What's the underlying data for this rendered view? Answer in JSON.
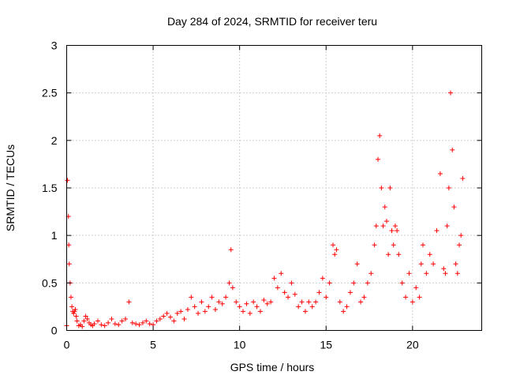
{
  "chart_data": {
    "type": "scatter",
    "title": "Day 284 of 2024, SRMTID for receiver teru",
    "xlabel": "GPS time / hours",
    "ylabel": "SRMTID / TECUs",
    "xlim": [
      0,
      24
    ],
    "ylim": [
      0,
      3
    ],
    "xticks": [
      0,
      5,
      10,
      15,
      20
    ],
    "xtick_labels": [
      "0",
      "5",
      "10",
      "15",
      "20"
    ],
    "yticks": [
      0,
      0.5,
      1,
      1.5,
      2,
      2.5,
      3
    ],
    "ytick_labels": [
      "0",
      "0.5",
      "1",
      "1.5",
      "2",
      "2.5",
      "3"
    ],
    "grid": true,
    "marker": "+",
    "color": "#ff0000",
    "series": [
      {
        "name": "SRMTID",
        "x": [
          0.0,
          0.05,
          0.1,
          0.12,
          0.15,
          0.2,
          0.25,
          0.3,
          0.35,
          0.4,
          0.45,
          0.5,
          0.55,
          0.6,
          0.7,
          0.8,
          0.9,
          1.0,
          1.1,
          1.2,
          1.3,
          1.4,
          1.5,
          1.6,
          1.8,
          2.0,
          2.2,
          2.4,
          2.6,
          2.8,
          3.0,
          3.2,
          3.4,
          3.6,
          3.8,
          4.0,
          4.2,
          4.4,
          4.6,
          4.8,
          5.0,
          5.2,
          5.4,
          5.6,
          5.8,
          6.0,
          6.2,
          6.4,
          6.6,
          6.8,
          7.0,
          7.2,
          7.4,
          7.6,
          7.8,
          8.0,
          8.2,
          8.4,
          8.6,
          8.8,
          9.0,
          9.2,
          9.4,
          9.5,
          9.6,
          9.8,
          10.0,
          10.2,
          10.4,
          10.6,
          10.8,
          11.0,
          11.2,
          11.4,
          11.6,
          11.8,
          12.0,
          12.2,
          12.4,
          12.6,
          12.8,
          13.0,
          13.2,
          13.4,
          13.6,
          13.8,
          14.0,
          14.2,
          14.4,
          14.6,
          14.8,
          15.0,
          15.2,
          15.4,
          15.5,
          15.6,
          15.8,
          16.0,
          16.2,
          16.4,
          16.6,
          16.8,
          17.0,
          17.2,
          17.4,
          17.6,
          17.8,
          17.9,
          18.0,
          18.1,
          18.2,
          18.3,
          18.4,
          18.5,
          18.6,
          18.7,
          18.8,
          18.9,
          19.0,
          19.1,
          19.2,
          19.4,
          19.6,
          19.8,
          20.0,
          20.2,
          20.4,
          20.5,
          20.6,
          20.8,
          21.0,
          21.2,
          21.4,
          21.6,
          21.8,
          21.9,
          22.0,
          22.1,
          22.2,
          22.3,
          22.4,
          22.5,
          22.6,
          22.7,
          22.8,
          22.9
        ],
        "y": [
          0.05,
          1.58,
          1.2,
          0.9,
          0.7,
          0.5,
          0.35,
          0.25,
          0.2,
          0.18,
          0.2,
          0.22,
          0.15,
          0.1,
          0.05,
          0.06,
          0.04,
          0.1,
          0.15,
          0.12,
          0.08,
          0.06,
          0.05,
          0.07,
          0.1,
          0.06,
          0.05,
          0.08,
          0.12,
          0.07,
          0.06,
          0.1,
          0.12,
          0.3,
          0.08,
          0.07,
          0.06,
          0.08,
          0.1,
          0.07,
          0.06,
          0.1,
          0.12,
          0.15,
          0.18,
          0.14,
          0.1,
          0.18,
          0.2,
          0.12,
          0.22,
          0.35,
          0.25,
          0.18,
          0.3,
          0.2,
          0.25,
          0.35,
          0.22,
          0.3,
          0.28,
          0.35,
          0.5,
          0.85,
          0.45,
          0.3,
          0.25,
          0.2,
          0.28,
          0.18,
          0.3,
          0.25,
          0.2,
          0.32,
          0.28,
          0.3,
          0.55,
          0.45,
          0.6,
          0.4,
          0.35,
          0.5,
          0.38,
          0.25,
          0.3,
          0.2,
          0.3,
          0.25,
          0.3,
          0.4,
          0.55,
          0.35,
          0.5,
          0.9,
          0.8,
          0.85,
          0.3,
          0.2,
          0.25,
          0.4,
          0.5,
          0.7,
          0.3,
          0.35,
          0.5,
          0.6,
          0.9,
          1.1,
          1.8,
          2.05,
          1.5,
          1.1,
          1.3,
          1.15,
          0.8,
          1.5,
          1.05,
          0.9,
          1.1,
          1.05,
          0.8,
          0.5,
          0.35,
          0.6,
          0.3,
          0.45,
          0.35,
          0.7,
          0.9,
          0.6,
          0.8,
          0.7,
          1.05,
          1.65,
          0.65,
          0.6,
          1.1,
          1.5,
          2.5,
          1.9,
          1.3,
          0.7,
          0.6,
          0.9,
          1.0,
          1.6
        ]
      }
    ]
  }
}
